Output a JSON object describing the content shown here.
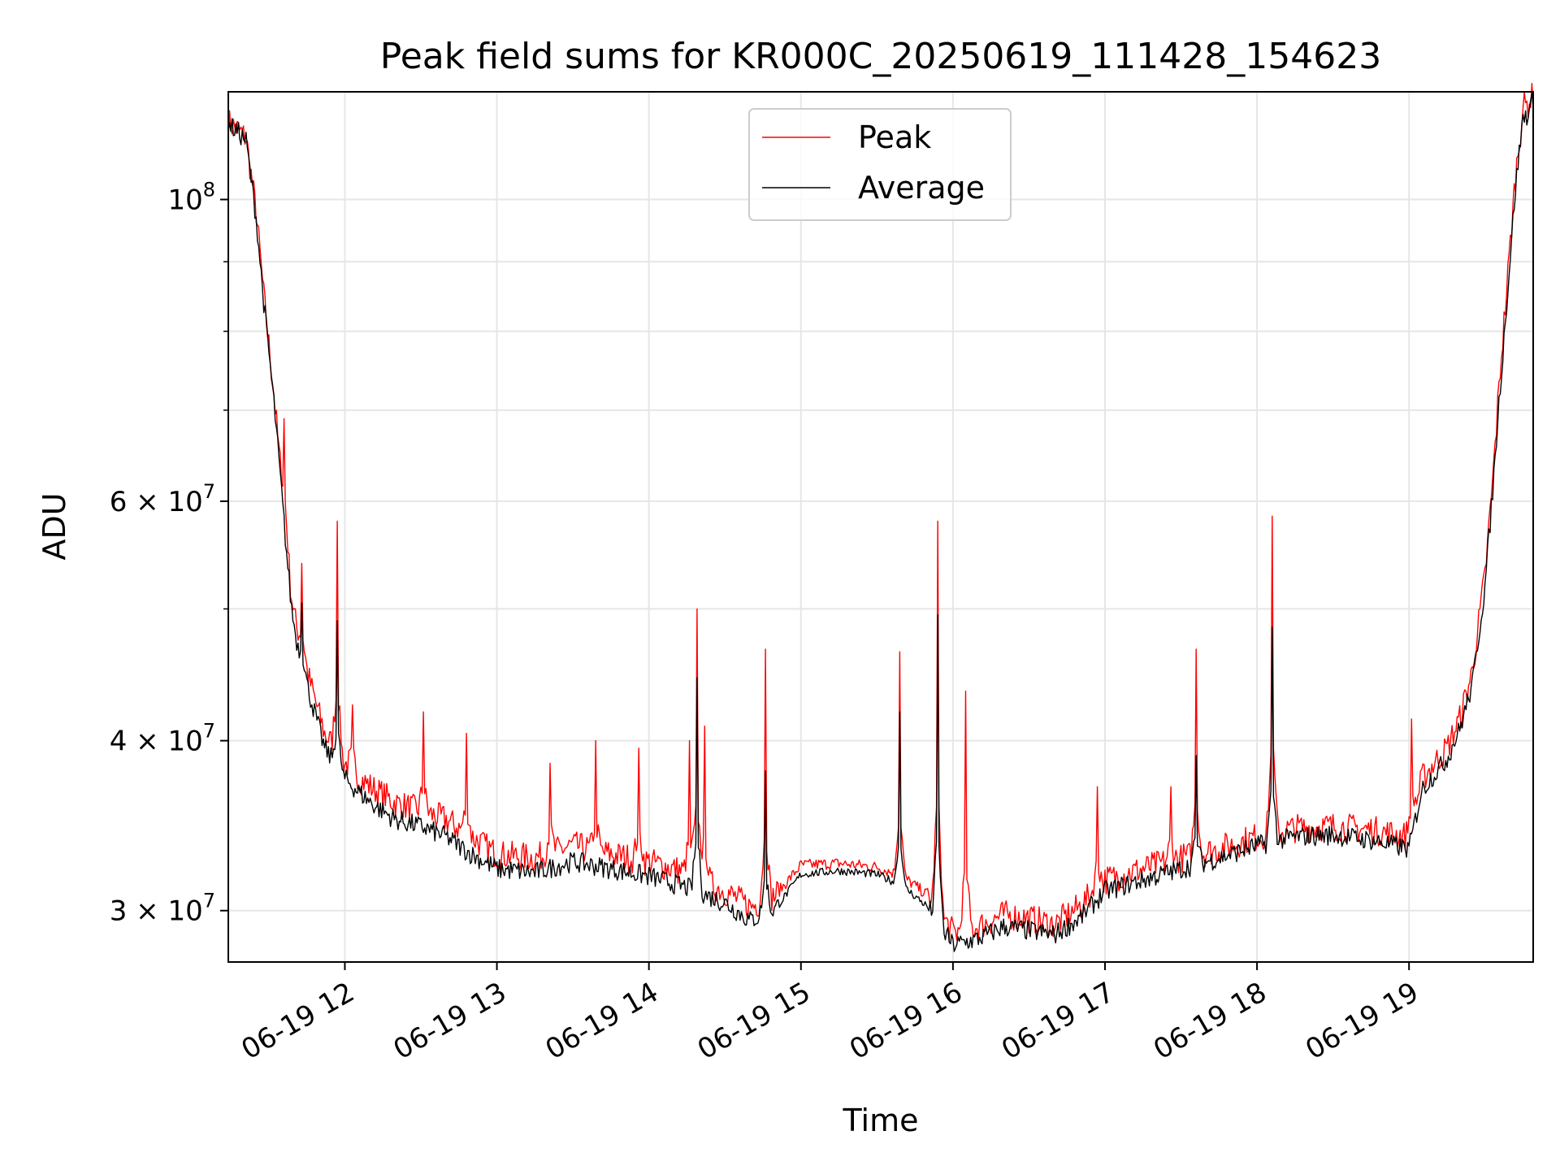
{
  "chart_data": {
    "type": "line",
    "title": "Peak field sums for KR000C_20250619_111428_154623",
    "xlabel": "Time",
    "ylabel": "ADU",
    "yscale": "log",
    "grid": true,
    "legend": "upper-center",
    "xlim": [
      "2025-06-19 11:14",
      "2025-06-19 19:49"
    ],
    "ylim": [
      27500000,
      120000000
    ],
    "x_ticks": [
      {
        "label": "06-19 12",
        "time": "2025-06-19 12:00"
      },
      {
        "label": "06-19 13",
        "time": "2025-06-19 13:00"
      },
      {
        "label": "06-19 14",
        "time": "2025-06-19 14:00"
      },
      {
        "label": "06-19 15",
        "time": "2025-06-19 15:00"
      },
      {
        "label": "06-19 16",
        "time": "2025-06-19 16:00"
      },
      {
        "label": "06-19 17",
        "time": "2025-06-19 17:00"
      },
      {
        "label": "06-19 18",
        "time": "2025-06-19 18:00"
      },
      {
        "label": "06-19 19",
        "time": "2025-06-19 19:00"
      }
    ],
    "y_ticks": [
      {
        "base": "3 × 10",
        "exp": "7",
        "value": 30000000
      },
      {
        "base": "4 × 10",
        "exp": "7",
        "value": 40000000
      },
      {
        "base": "6 × 10",
        "exp": "7",
        "value": 60000000
      },
      {
        "base": "10",
        "exp": "8",
        "value": 100000000
      }
    ],
    "y_minor_ticks": [
      50000000,
      70000000,
      80000000,
      90000000
    ],
    "series": [
      {
        "name": "Peak",
        "color": "#ff0000",
        "points": [
          [
            "11:14",
            114000000
          ],
          [
            "11:18",
            112500000
          ],
          [
            "11:21",
            111000000
          ],
          [
            "11:25",
            98000000
          ],
          [
            "11:28",
            85000000
          ],
          [
            "11:32",
            72000000
          ],
          [
            "11:35",
            62000000
          ],
          [
            "11:37",
            56000000
          ],
          [
            "11:39",
            51000000
          ],
          [
            "11:42",
            47000000
          ],
          [
            "11:45",
            45000000
          ],
          [
            "11:48",
            43000000
          ],
          [
            "11:52",
            40500000
          ],
          [
            "11:56",
            39500000
          ],
          [
            "12:00",
            38500000
          ],
          [
            "12:06",
            37500000
          ],
          [
            "12:12",
            36800000
          ],
          [
            "12:20",
            36000000
          ],
          [
            "12:30",
            35500000
          ],
          [
            "12:40",
            35000000
          ],
          [
            "12:50",
            34000000
          ],
          [
            "13:00",
            33000000
          ],
          [
            "13:15",
            32800000
          ],
          [
            "13:30",
            33500000
          ],
          [
            "13:45",
            33000000
          ],
          [
            "14:00",
            32600000
          ],
          [
            "14:15",
            32000000
          ],
          [
            "14:30",
            31000000
          ],
          [
            "14:40",
            30200000
          ],
          [
            "14:50",
            30800000
          ],
          [
            "15:00",
            32400000
          ],
          [
            "15:15",
            32500000
          ],
          [
            "15:30",
            32300000
          ],
          [
            "15:40",
            31800000
          ],
          [
            "15:50",
            30800000
          ],
          [
            "16:00",
            28900000
          ],
          [
            "16:10",
            29200000
          ],
          [
            "16:20",
            29800000
          ],
          [
            "16:30",
            29600000
          ],
          [
            "16:40",
            29300000
          ],
          [
            "16:50",
            30200000
          ],
          [
            "17:00",
            31600000
          ],
          [
            "17:15",
            32200000
          ],
          [
            "17:30",
            32800000
          ],
          [
            "17:45",
            33300000
          ],
          [
            "18:00",
            34000000
          ],
          [
            "18:15",
            34500000
          ],
          [
            "18:30",
            34600000
          ],
          [
            "18:45",
            34400000
          ],
          [
            "19:00",
            34000000
          ],
          [
            "19:05",
            37500000
          ],
          [
            "19:10",
            38500000
          ],
          [
            "19:15",
            39500000
          ],
          [
            "19:20",
            41500000
          ],
          [
            "19:25",
            45000000
          ],
          [
            "19:30",
            53000000
          ],
          [
            "19:33",
            62000000
          ],
          [
            "19:36",
            75000000
          ],
          [
            "19:39",
            88000000
          ],
          [
            "19:42",
            104000000
          ],
          [
            "19:45",
            117000000
          ],
          [
            "19:47",
            117500000
          ],
          [
            "19:49",
            119500000
          ]
        ],
        "spikes": [
          [
            "11:36",
            69000000
          ],
          [
            "11:43",
            54000000
          ],
          [
            "11:57",
            58000000
          ],
          [
            "12:03",
            42500000
          ],
          [
            "12:31",
            42000000
          ],
          [
            "12:48",
            40500000
          ],
          [
            "13:21",
            38500000
          ],
          [
            "13:39",
            40000000
          ],
          [
            "13:56",
            39500000
          ],
          [
            "14:16",
            40000000
          ],
          [
            "14:19",
            50000000
          ],
          [
            "14:22",
            41000000
          ],
          [
            "14:46",
            46700000
          ],
          [
            "15:39",
            46500000
          ],
          [
            "15:54",
            58000000
          ],
          [
            "16:05",
            43500000
          ],
          [
            "16:57",
            37000000
          ],
          [
            "17:26",
            37000000
          ],
          [
            "17:36",
            46700000
          ],
          [
            "18:06",
            58500000
          ],
          [
            "19:01",
            41500000
          ]
        ]
      },
      {
        "name": "Average",
        "color": "#000000",
        "points": [
          [
            "11:14",
            113500000
          ],
          [
            "11:18",
            112000000
          ],
          [
            "11:21",
            110500000
          ],
          [
            "11:25",
            97000000
          ],
          [
            "11:28",
            84000000
          ],
          [
            "11:32",
            71000000
          ],
          [
            "11:35",
            61000000
          ],
          [
            "11:37",
            55000000
          ],
          [
            "11:39",
            50000000
          ],
          [
            "11:42",
            46000000
          ],
          [
            "11:45",
            44000000
          ],
          [
            "11:48",
            42000000
          ],
          [
            "11:52",
            39500000
          ],
          [
            "11:56",
            38500000
          ],
          [
            "12:00",
            37500000
          ],
          [
            "12:06",
            36600000
          ],
          [
            "12:12",
            35800000
          ],
          [
            "12:20",
            35000000
          ],
          [
            "12:30",
            34600000
          ],
          [
            "12:40",
            34000000
          ],
          [
            "12:50",
            33000000
          ],
          [
            "13:00",
            32200000
          ],
          [
            "13:15",
            32000000
          ],
          [
            "13:30",
            32600000
          ],
          [
            "13:45",
            32200000
          ],
          [
            "14:00",
            31800000
          ],
          [
            "14:15",
            31200000
          ],
          [
            "14:30",
            30400000
          ],
          [
            "14:40",
            29500000
          ],
          [
            "14:50",
            30100000
          ],
          [
            "15:00",
            31900000
          ],
          [
            "15:15",
            32100000
          ],
          [
            "15:30",
            31900000
          ],
          [
            "15:40",
            31300000
          ],
          [
            "15:50",
            30200000
          ],
          [
            "16:00",
            28300000
          ],
          [
            "16:10",
            28600000
          ],
          [
            "16:20",
            29200000
          ],
          [
            "16:30",
            29000000
          ],
          [
            "16:40",
            28800000
          ],
          [
            "16:50",
            29600000
          ],
          [
            "17:00",
            31000000
          ],
          [
            "17:15",
            31600000
          ],
          [
            "17:30",
            32200000
          ],
          [
            "17:45",
            32800000
          ],
          [
            "18:00",
            33500000
          ],
          [
            "18:15",
            34000000
          ],
          [
            "18:30",
            34100000
          ],
          [
            "18:45",
            33800000
          ],
          [
            "19:00",
            33300000
          ],
          [
            "19:05",
            36800000
          ],
          [
            "19:10",
            37800000
          ],
          [
            "19:15",
            38800000
          ],
          [
            "19:20",
            40800000
          ],
          [
            "19:25",
            44000000
          ],
          [
            "19:30",
            52000000
          ],
          [
            "19:33",
            61000000
          ],
          [
            "19:36",
            73000000
          ],
          [
            "19:39",
            86000000
          ],
          [
            "19:42",
            102000000
          ],
          [
            "19:45",
            115000000
          ],
          [
            "19:47",
            115500000
          ],
          [
            "19:49",
            118500000
          ]
        ],
        "spikes": [
          [
            "11:43",
            50500000
          ],
          [
            "11:57",
            49000000
          ],
          [
            "14:19",
            44500000
          ],
          [
            "14:46",
            38000000
          ],
          [
            "15:39",
            42000000
          ],
          [
            "15:54",
            49500000
          ],
          [
            "17:36",
            39000000
          ],
          [
            "18:06",
            48500000
          ]
        ]
      }
    ]
  }
}
